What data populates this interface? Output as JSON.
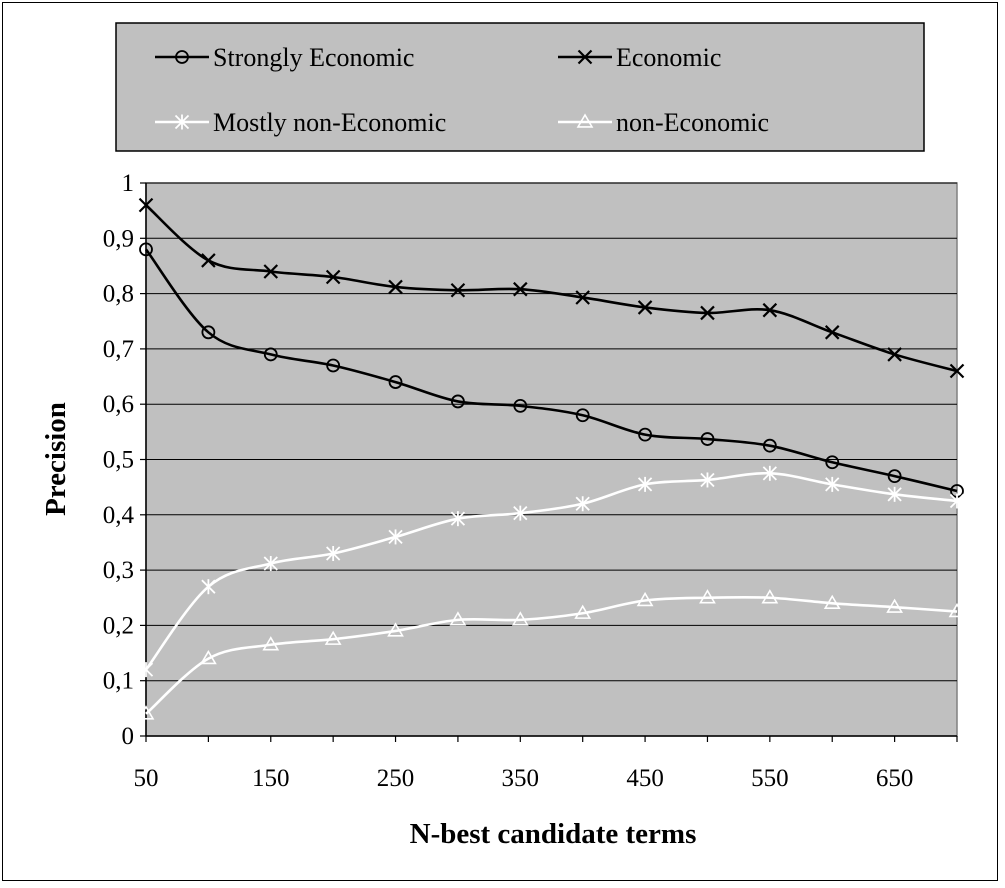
{
  "chart_data": {
    "type": "line",
    "title": "",
    "xlabel": "N-best candidate terms",
    "ylabel": "Precision",
    "x": [
      50,
      100,
      150,
      200,
      250,
      300,
      350,
      400,
      450,
      500,
      550,
      600,
      650,
      700
    ],
    "xlim": [
      50,
      700
    ],
    "ylim": [
      0,
      1
    ],
    "xtick_labels": [
      "50",
      "150",
      "250",
      "350",
      "450",
      "550",
      "650"
    ],
    "xtick_values": [
      50,
      150,
      250,
      350,
      450,
      550,
      650
    ],
    "ytick_labels": [
      "0",
      "0,1",
      "0,2",
      "0,3",
      "0,4",
      "0,5",
      "0,6",
      "0,7",
      "0,8",
      "0,9",
      "1"
    ],
    "ytick_values": [
      0,
      0.1,
      0.2,
      0.3,
      0.4,
      0.5,
      0.6,
      0.7,
      0.8,
      0.9,
      1
    ],
    "grid": true,
    "legend_placement": "top",
    "plot_background": "#c0c0c0",
    "series": [
      {
        "name": "Strongly Economic",
        "marker": "circle",
        "color": "#000000",
        "values": [
          0.88,
          0.73,
          0.69,
          0.67,
          0.64,
          0.605,
          0.597,
          0.58,
          0.545,
          0.537,
          0.525,
          0.495,
          0.47,
          0.443
        ]
      },
      {
        "name": "Economic",
        "marker": "x",
        "color": "#000000",
        "values": [
          0.96,
          0.86,
          0.84,
          0.83,
          0.812,
          0.806,
          0.808,
          0.793,
          0.775,
          0.765,
          0.77,
          0.73,
          0.69,
          0.66
        ]
      },
      {
        "name": "Mostly non-Economic",
        "marker": "asterisk",
        "color": "#ffffff",
        "values": [
          0.12,
          0.27,
          0.312,
          0.33,
          0.36,
          0.393,
          0.403,
          0.42,
          0.455,
          0.463,
          0.475,
          0.455,
          0.437,
          0.425
        ]
      },
      {
        "name": "non-Economic",
        "marker": "triangle",
        "color": "#ffffff",
        "values": [
          0.04,
          0.14,
          0.165,
          0.175,
          0.19,
          0.21,
          0.21,
          0.222,
          0.245,
          0.25,
          0.25,
          0.24,
          0.233,
          0.225
        ]
      }
    ]
  }
}
